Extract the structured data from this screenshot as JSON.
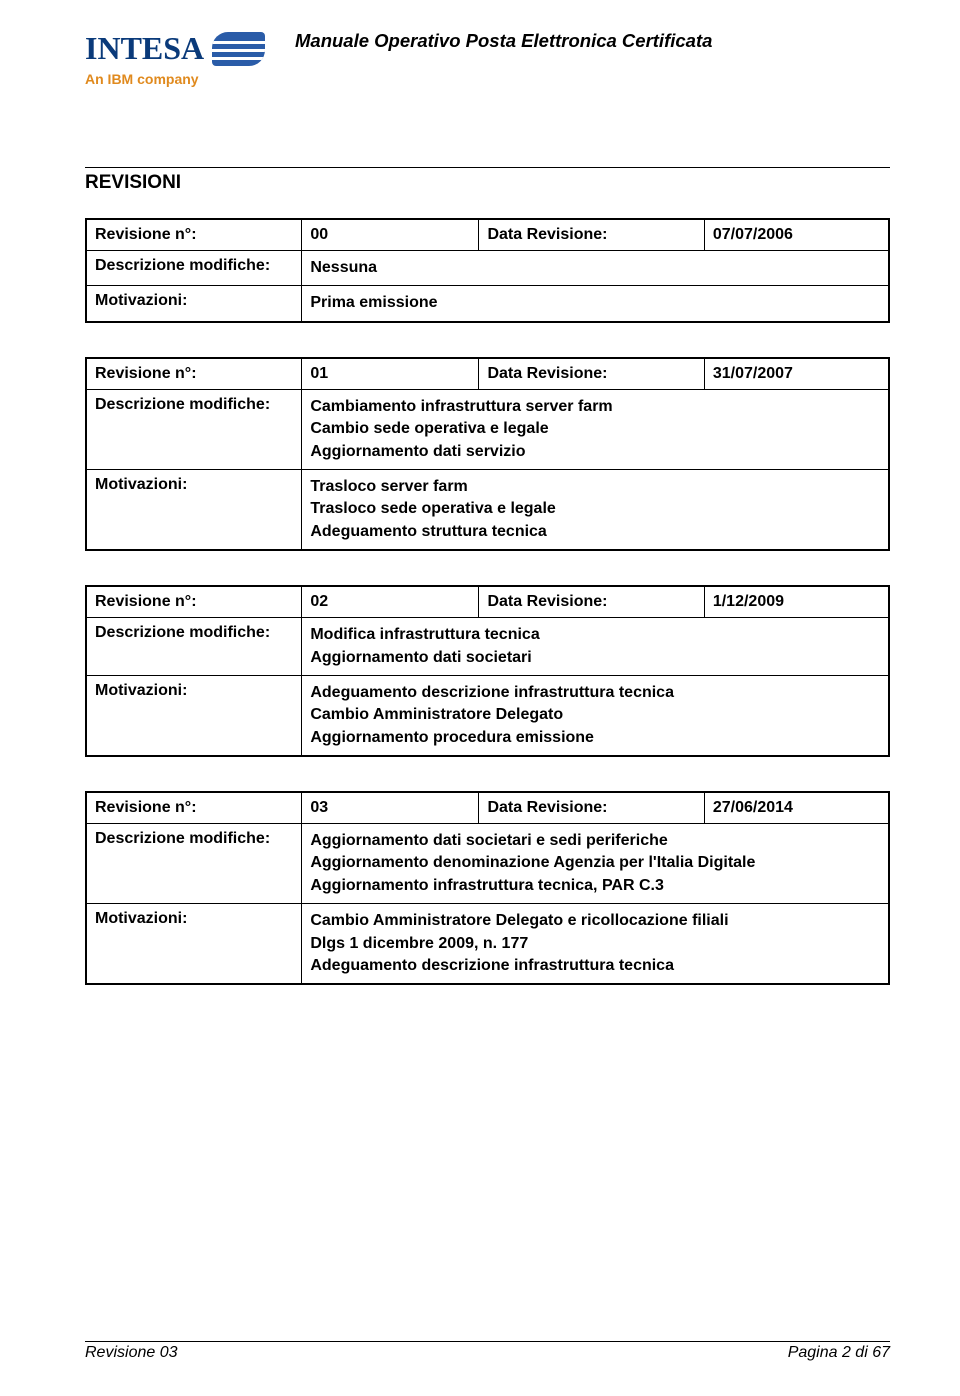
{
  "header": {
    "logo_text": "INTESA",
    "logo_subtitle": "An IBM company",
    "doc_title": "Manuale Operativo Posta Elettronica Certificata"
  },
  "section_title": "REVISIONI",
  "labels": {
    "rev_num": "Revisione n°:",
    "rev_date": "Data Revisione:",
    "desc_mod": "Descrizione modifiche:",
    "motiv": "Motivazioni:"
  },
  "revisions": [
    {
      "num": "00",
      "date": "07/07/2006",
      "desc": [
        "Nessuna"
      ],
      "motiv": [
        "Prima emissione"
      ]
    },
    {
      "num": "01",
      "date": "31/07/2007",
      "desc": [
        "Cambiamento infrastruttura server farm",
        "Cambio sede operativa e legale",
        "Aggiornamento dati servizio"
      ],
      "motiv": [
        "Trasloco server farm",
        "Trasloco sede operativa e legale",
        "Adeguamento struttura tecnica"
      ]
    },
    {
      "num": "02",
      "date": "1/12/2009",
      "desc": [
        "Modifica infrastruttura tecnica",
        "Aggiornamento dati societari"
      ],
      "motiv": [
        "Adeguamento descrizione infrastruttura tecnica",
        "Cambio Amministratore Delegato",
        "Aggiornamento procedura emissione"
      ]
    },
    {
      "num": "03",
      "date": "27/06/2014",
      "desc": [
        "Aggiornamento dati societari e sedi periferiche",
        "Aggiornamento denominazione Agenzia per l'Italia Digitale",
        "Aggiornamento infrastruttura tecnica, PAR C.3"
      ],
      "motiv": [
        "Cambio Amministratore Delegato e ricollocazione filiali",
        "Dlgs 1 dicembre 2009, n. 177",
        "Adeguamento descrizione infrastruttura tecnica"
      ]
    }
  ],
  "footer": {
    "left": "Revisione 03",
    "right": "Pagina 2 di 67"
  }
}
